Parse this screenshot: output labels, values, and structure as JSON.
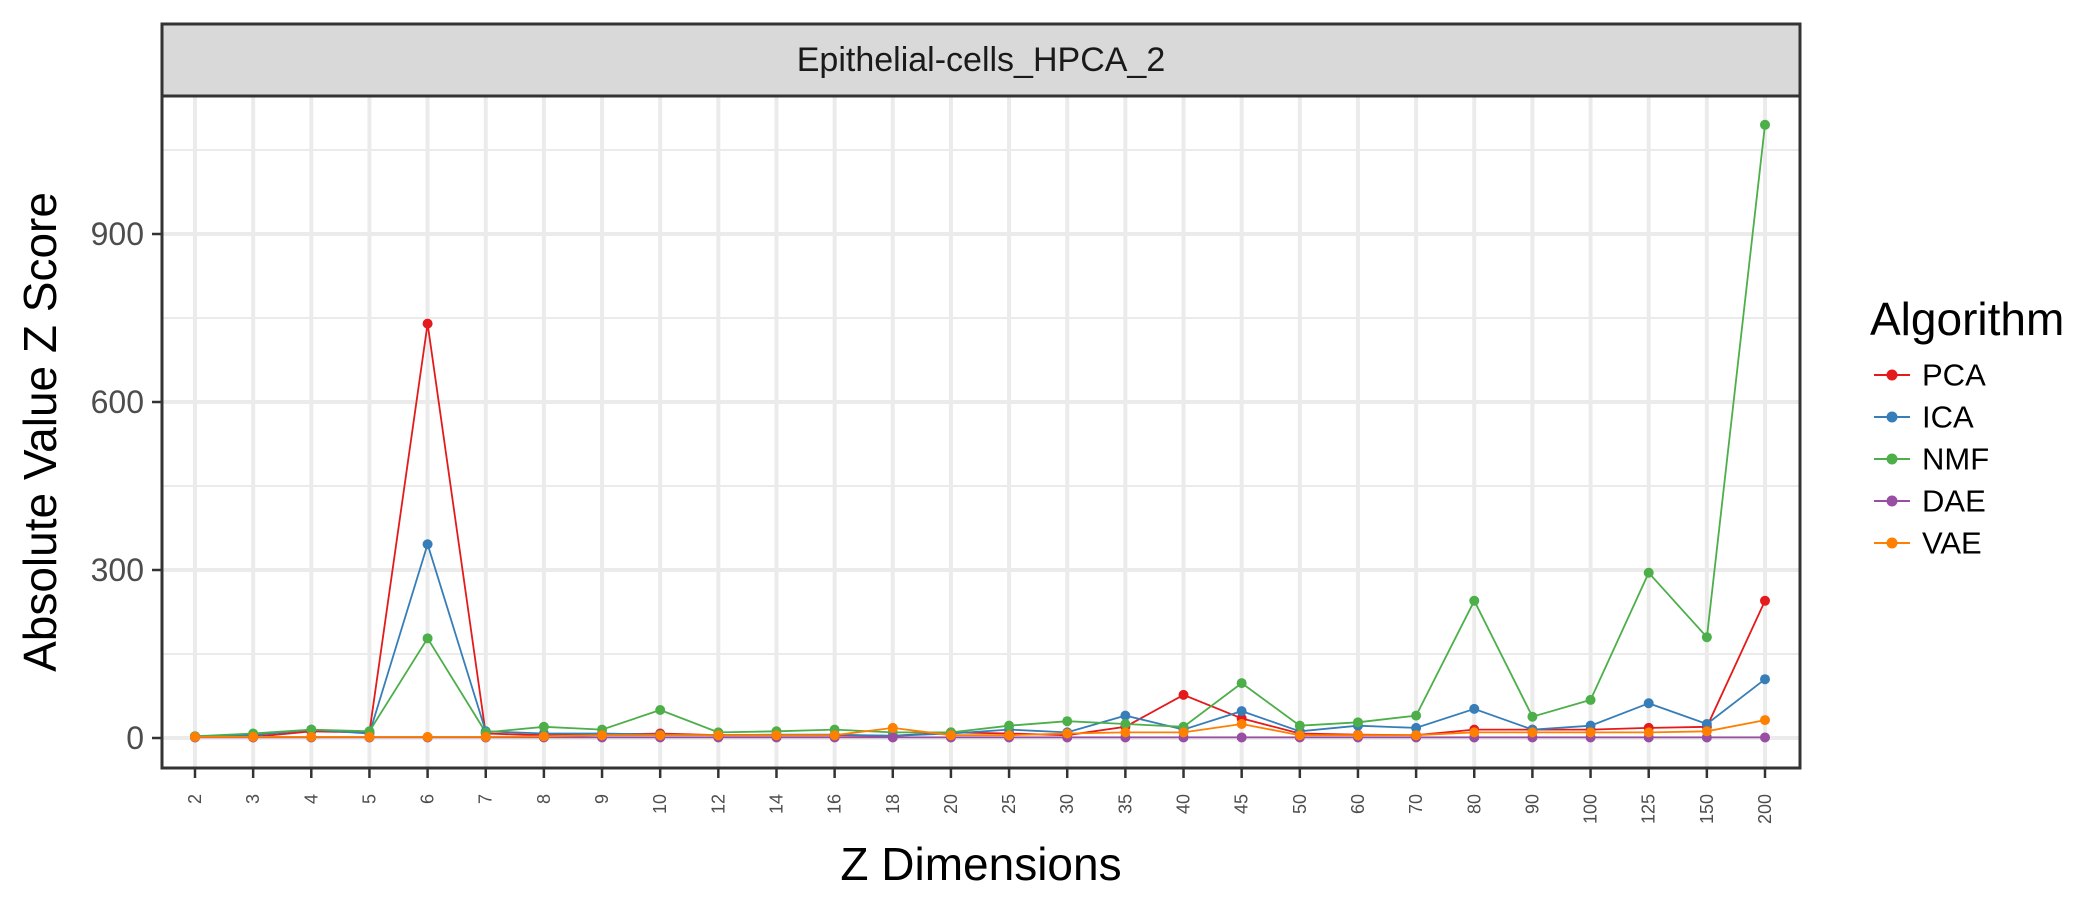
{
  "chart_data": {
    "type": "line",
    "title": "",
    "facet_label": "Epithelial-cells_HPCA_2",
    "xlabel": "Z Dimensions",
    "ylabel": "Absolute Value Z Score",
    "categories": [
      "2",
      "3",
      "4",
      "5",
      "6",
      "7",
      "8",
      "9",
      "10",
      "12",
      "14",
      "16",
      "18",
      "20",
      "25",
      "30",
      "35",
      "40",
      "45",
      "50",
      "60",
      "70",
      "80",
      "90",
      "100",
      "125",
      "150",
      "200"
    ],
    "yticks": [
      0,
      300,
      600,
      900
    ],
    "ylim": [
      -50,
      1150
    ],
    "grid": true,
    "legend": {
      "title": "Algorithm",
      "position": "right"
    },
    "series": [
      {
        "name": "PCA",
        "color": "#E41A1C",
        "values": [
          3,
          2,
          12,
          10,
          740,
          8,
          5,
          6,
          8,
          5,
          5,
          5,
          4,
          10,
          8,
          5,
          20,
          77,
          35,
          8,
          6,
          5,
          15,
          15,
          15,
          18,
          20,
          245
        ]
      },
      {
        "name": "ICA",
        "color": "#377EB8",
        "values": [
          3,
          5,
          15,
          8,
          346,
          12,
          8,
          8,
          6,
          5,
          6,
          6,
          4,
          8,
          15,
          10,
          40,
          15,
          48,
          12,
          22,
          18,
          52,
          15,
          22,
          62,
          25,
          105
        ]
      },
      {
        "name": "NMF",
        "color": "#4DAF4A",
        "values": [
          3,
          8,
          15,
          12,
          178,
          10,
          20,
          15,
          50,
          10,
          12,
          15,
          10,
          10,
          22,
          30,
          25,
          20,
          98,
          22,
          28,
          40,
          245,
          38,
          68,
          295,
          180,
          1095
        ]
      },
      {
        "name": "DAE",
        "color": "#984EA3",
        "values": [
          1,
          1,
          1,
          1,
          1,
          1,
          1,
          1,
          1,
          1,
          1,
          1,
          1,
          1,
          1,
          1,
          1,
          1,
          1,
          1,
          1,
          1,
          1,
          1,
          1,
          1,
          1,
          1
        ]
      },
      {
        "name": "VAE",
        "color": "#FF7F00",
        "values": [
          2,
          2,
          2,
          2,
          2,
          2,
          3,
          5,
          5,
          5,
          5,
          5,
          18,
          5,
          5,
          8,
          10,
          10,
          25,
          5,
          5,
          5,
          10,
          10,
          10,
          10,
          12,
          32
        ]
      }
    ]
  }
}
